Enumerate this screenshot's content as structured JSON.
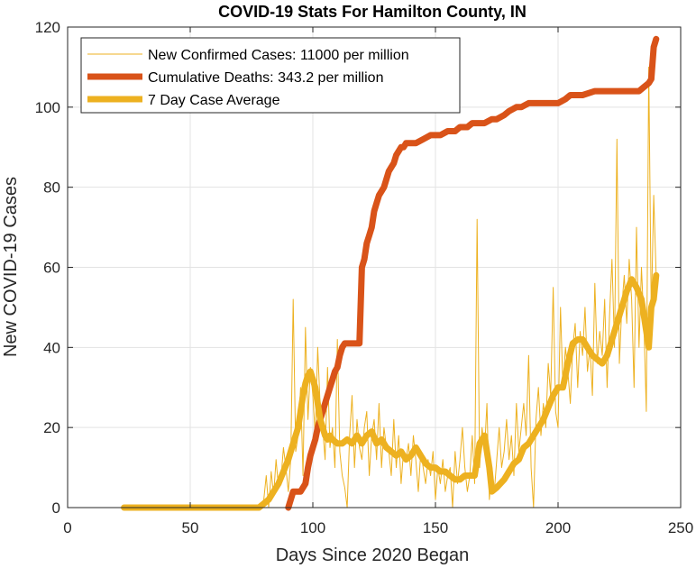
{
  "chart_data": {
    "type": "line",
    "title": "COVID-19 Stats For Hamilton County, IN",
    "xlabel": "Days Since 2020 Began",
    "ylabel": "New COVID-19 Cases",
    "xlim": [
      0,
      250
    ],
    "ylim": [
      0,
      120
    ],
    "xticks": [
      0,
      50,
      100,
      150,
      200,
      250
    ],
    "yticks": [
      0,
      20,
      40,
      60,
      80,
      100,
      120
    ],
    "grid": true,
    "legend_position": "top-left",
    "series": [
      {
        "name": "New Confirmed Cases: 11000 per million",
        "color": "#EDB120",
        "style": "thin",
        "x": [
          23,
          30,
          40,
          50,
          60,
          70,
          75,
          78,
          80,
          81,
          82,
          83,
          84,
          85,
          86,
          87,
          88,
          89,
          90,
          91,
          92,
          93,
          94,
          95,
          96,
          97,
          98,
          99,
          100,
          101,
          102,
          103,
          104,
          105,
          106,
          107,
          108,
          109,
          110,
          111,
          112,
          113,
          114,
          115,
          116,
          117,
          118,
          119,
          120,
          121,
          122,
          123,
          124,
          125,
          126,
          127,
          128,
          129,
          130,
          131,
          132,
          133,
          134,
          135,
          136,
          137,
          138,
          139,
          140,
          141,
          142,
          143,
          144,
          145,
          146,
          147,
          148,
          149,
          150,
          151,
          152,
          153,
          154,
          155,
          156,
          157,
          158,
          159,
          160,
          161,
          162,
          163,
          164,
          165,
          166,
          167,
          168,
          169,
          170,
          171,
          172,
          173,
          174,
          175,
          176,
          177,
          178,
          179,
          180,
          181,
          182,
          183,
          184,
          185,
          186,
          187,
          188,
          189,
          190,
          191,
          192,
          193,
          194,
          195,
          196,
          197,
          198,
          199,
          200,
          201,
          202,
          203,
          204,
          205,
          206,
          207,
          208,
          209,
          210,
          211,
          212,
          213,
          214,
          215,
          216,
          217,
          218,
          219,
          220,
          221,
          222,
          223,
          224,
          225,
          226,
          227,
          228,
          229,
          230,
          231,
          232,
          233,
          234,
          235,
          236,
          237,
          238,
          239,
          240
        ],
        "y": [
          0,
          0,
          0,
          0,
          0,
          0,
          0,
          0,
          2,
          8,
          0,
          9,
          3,
          12,
          5,
          7,
          15,
          10,
          4,
          12,
          52,
          14,
          18,
          30,
          8,
          45,
          22,
          35,
          28,
          18,
          40,
          25,
          20,
          12,
          35,
          15,
          20,
          10,
          42,
          14,
          8,
          5,
          0,
          18,
          28,
          10,
          22,
          15,
          12,
          20,
          24,
          8,
          18,
          22,
          12,
          26,
          10,
          20,
          15,
          14,
          8,
          22,
          10,
          18,
          6,
          14,
          12,
          16,
          8,
          18,
          12,
          4,
          14,
          10,
          6,
          12,
          8,
          14,
          2,
          10,
          6,
          12,
          4,
          8,
          10,
          0,
          14,
          6,
          12,
          20,
          10,
          4,
          8,
          18,
          6,
          72,
          10,
          20,
          14,
          26,
          2,
          10,
          4,
          12,
          20,
          10,
          14,
          22,
          12,
          18,
          8,
          26,
          14,
          20,
          26,
          18,
          38,
          10,
          0,
          22,
          30,
          18,
          26,
          20,
          36,
          28,
          55,
          24,
          20,
          50,
          30,
          40,
          34,
          26,
          40,
          46,
          30,
          44,
          38,
          50,
          34,
          40,
          28,
          56,
          36,
          44,
          38,
          52,
          30,
          48,
          62,
          40,
          92,
          36,
          50,
          58,
          46,
          62,
          52,
          30,
          70,
          40,
          60,
          46,
          24,
          110,
          48,
          78,
          58
        ],
        "values_note": ""
      },
      {
        "name": "Cumulative Deaths: 343.2 per million",
        "color": "#D95319",
        "style": "thick",
        "x": [
          90,
          91,
          92,
          94,
          95,
          96,
          97,
          98,
          99,
          100,
          101,
          102,
          103,
          104,
          105,
          106,
          107,
          108,
          109,
          110,
          111,
          112,
          113,
          114,
          115,
          116,
          117,
          118,
          119,
          120,
          121,
          122,
          123,
          124,
          125,
          126,
          127,
          128,
          129,
          130,
          131,
          132,
          133,
          134,
          135,
          136,
          137,
          138,
          140,
          142,
          145,
          148,
          150,
          152,
          155,
          158,
          160,
          163,
          165,
          168,
          170,
          173,
          175,
          178,
          180,
          183,
          185,
          188,
          190,
          195,
          200,
          203,
          205,
          208,
          210,
          215,
          220,
          225,
          230,
          233,
          235,
          237,
          238,
          239,
          240
        ],
        "y": [
          0,
          2,
          4,
          4,
          4,
          5,
          6,
          10,
          13,
          15,
          17,
          20,
          22,
          24,
          26,
          28,
          30,
          32,
          34,
          35,
          38,
          40,
          41,
          41,
          41,
          41,
          41,
          41,
          41,
          60,
          62,
          66,
          68,
          70,
          74,
          76,
          78,
          79,
          80,
          82,
          84,
          85,
          86,
          88,
          89,
          90,
          90,
          91,
          91,
          91,
          92,
          93,
          93,
          93,
          94,
          94,
          95,
          95,
          96,
          96,
          96,
          97,
          97,
          98,
          99,
          100,
          100,
          101,
          101,
          101,
          101,
          102,
          103,
          103,
          103,
          104,
          104,
          104,
          104,
          104,
          105,
          106,
          107,
          115,
          117
        ]
      },
      {
        "name": "7 Day Case Average",
        "color": "#EDB120",
        "style": "thick",
        "x": [
          23,
          30,
          40,
          50,
          60,
          70,
          75,
          78,
          80,
          82,
          84,
          86,
          88,
          90,
          92,
          94,
          95,
          96,
          97,
          98,
          99,
          100,
          101,
          102,
          103,
          104,
          105,
          106,
          107,
          108,
          110,
          112,
          114,
          116,
          118,
          120,
          122,
          124,
          126,
          128,
          130,
          132,
          134,
          136,
          138,
          140,
          142,
          144,
          146,
          148,
          150,
          152,
          154,
          156,
          158,
          160,
          162,
          164,
          166,
          168,
          170,
          172,
          173,
          175,
          178,
          180,
          182,
          184,
          186,
          188,
          190,
          192,
          194,
          196,
          198,
          200,
          202,
          204,
          206,
          208,
          210,
          212,
          214,
          216,
          218,
          220,
          222,
          224,
          226,
          228,
          230,
          232,
          234,
          235,
          236,
          237,
          238,
          239,
          240
        ],
        "y": [
          0,
          0,
          0,
          0,
          0,
          0,
          0,
          0,
          1,
          2,
          4,
          6,
          9,
          12,
          16,
          20,
          24,
          28,
          31,
          33,
          34,
          32,
          30,
          26,
          22,
          20,
          18,
          17,
          18,
          17,
          16,
          16,
          17,
          16,
          18,
          16,
          18,
          19,
          16,
          17,
          15,
          14,
          13,
          14,
          12,
          13,
          15,
          13,
          11,
          10,
          10,
          9,
          9,
          8,
          7,
          7,
          8,
          8,
          8,
          16,
          18,
          10,
          4,
          5,
          7,
          9,
          11,
          12,
          15,
          16,
          18,
          20,
          22,
          25,
          28,
          30,
          30,
          36,
          41,
          42,
          42,
          40,
          38,
          37,
          36,
          38,
          42,
          46,
          50,
          54,
          57,
          55,
          52,
          48,
          44,
          40,
          50,
          52,
          58
        ]
      }
    ]
  }
}
